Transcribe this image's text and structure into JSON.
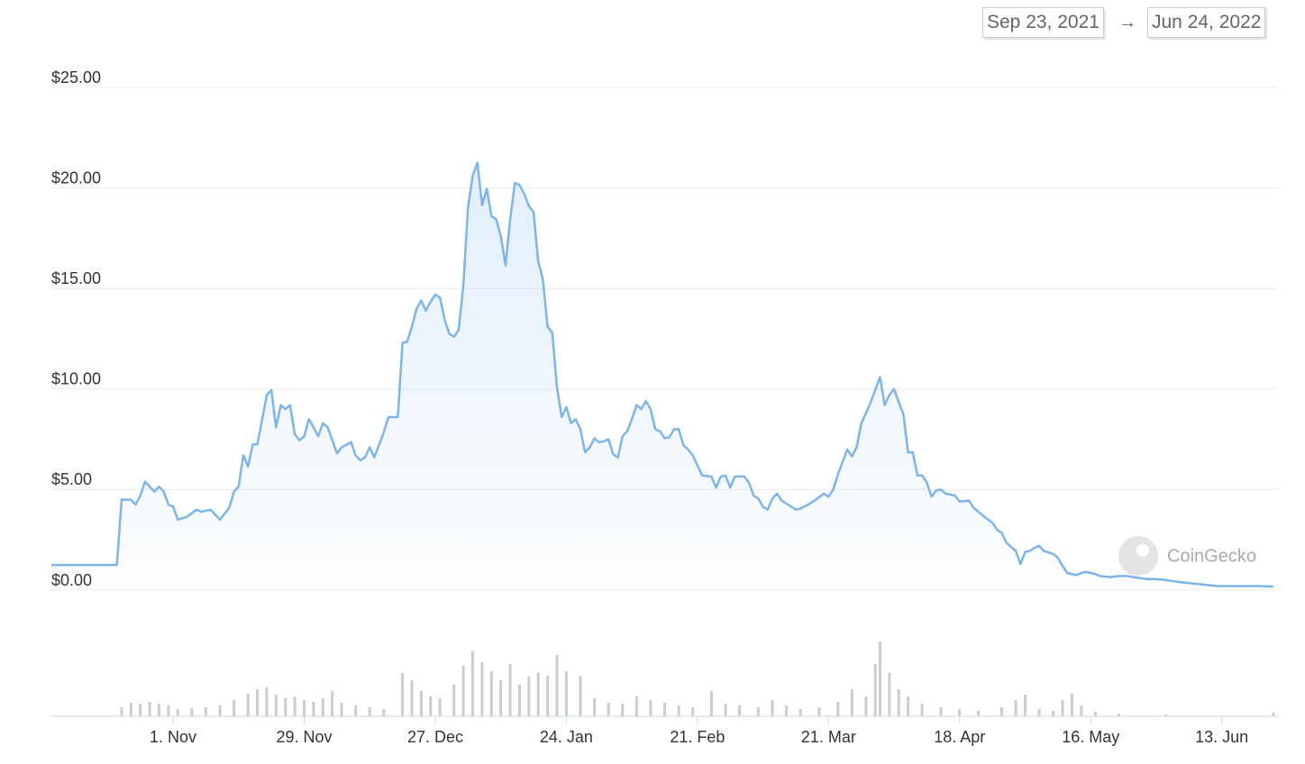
{
  "chart_data": {
    "type": "line",
    "range_start": "Sep 23, 2021",
    "range_arrow": "→",
    "range_end": "Jun 24, 2022",
    "watermark": "CoinGecko",
    "xlim": [
      "2021-10-06",
      "2022-06-25"
    ],
    "xticks": [
      {
        "value": "2021-11-01",
        "label": "1. Nov"
      },
      {
        "value": "2021-11-29",
        "label": "29. Nov"
      },
      {
        "value": "2021-12-27",
        "label": "27. Dec"
      },
      {
        "value": "2022-01-24",
        "label": "24. Jan"
      },
      {
        "value": "2022-02-21",
        "label": "21. Feb"
      },
      {
        "value": "2022-03-21",
        "label": "21. Mar"
      },
      {
        "value": "2022-04-18",
        "label": "18. Apr"
      },
      {
        "value": "2022-05-16",
        "label": "16. May"
      },
      {
        "value": "2022-06-13",
        "label": "13. Jun"
      }
    ],
    "ylim": [
      0,
      25
    ],
    "yticks": [
      {
        "value": 0,
        "label": "$0.00"
      },
      {
        "value": 5,
        "label": "$5.00"
      },
      {
        "value": 10,
        "label": "$10.00"
      },
      {
        "value": 15,
        "label": "$15.00"
      },
      {
        "value": 20,
        "label": "$20.00"
      },
      {
        "value": 25,
        "label": "$25.00"
      }
    ],
    "y2lim": [
      0,
      100
    ],
    "grid": true,
    "x": [
      "2021-10-06",
      "2021-10-20",
      "2021-10-21",
      "2021-10-23",
      "2021-10-24",
      "2021-10-25",
      "2021-10-26",
      "2021-10-28",
      "2021-10-29",
      "2021-10-30",
      "2021-10-31",
      "2021-11-01",
      "2021-11-02",
      "2021-11-04",
      "2021-11-06",
      "2021-11-07",
      "2021-11-09",
      "2021-11-11",
      "2021-11-13",
      "2021-11-14",
      "2021-11-15",
      "2021-11-16",
      "2021-11-17",
      "2021-11-18",
      "2021-11-19",
      "2021-11-21",
      "2021-11-22",
      "2021-11-23",
      "2021-11-24",
      "2021-11-25",
      "2021-11-26",
      "2021-11-27",
      "2021-11-28",
      "2021-11-29",
      "2021-11-30",
      "2021-12-01",
      "2021-12-02",
      "2021-12-03",
      "2021-12-04",
      "2021-12-06",
      "2021-12-07",
      "2021-12-09",
      "2021-12-10",
      "2021-12-11",
      "2021-12-12",
      "2021-12-13",
      "2021-12-14",
      "2021-12-16",
      "2021-12-17",
      "2021-12-19",
      "2021-12-20",
      "2021-12-21",
      "2021-12-22",
      "2021-12-23",
      "2021-12-24",
      "2021-12-25",
      "2021-12-26",
      "2021-12-27",
      "2021-12-28",
      "2021-12-29",
      "2021-12-30",
      "2021-12-31",
      "2022-01-01",
      "2022-01-02",
      "2022-01-03",
      "2022-01-04",
      "2022-01-05",
      "2022-01-06",
      "2022-01-07",
      "2022-01-08",
      "2022-01-09",
      "2022-01-10",
      "2022-01-11",
      "2022-01-12",
      "2022-01-13",
      "2022-01-14",
      "2022-01-15",
      "2022-01-16",
      "2022-01-17",
      "2022-01-18",
      "2022-01-19",
      "2022-01-20",
      "2022-01-21",
      "2022-01-22",
      "2022-01-23",
      "2022-01-24",
      "2022-01-25",
      "2022-01-26",
      "2022-01-27",
      "2022-01-28",
      "2022-01-29",
      "2022-01-30",
      "2022-01-31",
      "2022-02-01",
      "2022-02-02",
      "2022-02-03",
      "2022-02-04",
      "2022-02-05",
      "2022-02-06",
      "2022-02-07",
      "2022-02-08",
      "2022-02-09",
      "2022-02-10",
      "2022-02-11",
      "2022-02-12",
      "2022-02-13",
      "2022-02-14",
      "2022-02-15",
      "2022-02-16",
      "2022-02-17",
      "2022-02-18",
      "2022-02-19",
      "2022-02-20",
      "2022-02-22",
      "2022-02-24",
      "2022-02-25",
      "2022-02-26",
      "2022-02-27",
      "2022-02-28",
      "2022-03-01",
      "2022-03-03",
      "2022-03-04",
      "2022-03-05",
      "2022-03-06",
      "2022-03-07",
      "2022-03-08",
      "2022-03-09",
      "2022-03-10",
      "2022-03-11",
      "2022-03-12",
      "2022-03-14",
      "2022-03-15",
      "2022-03-17",
      "2022-03-18",
      "2022-03-20",
      "2022-03-21",
      "2022-03-22",
      "2022-03-23",
      "2022-03-25",
      "2022-03-26",
      "2022-03-27",
      "2022-03-28",
      "2022-03-29",
      "2022-03-30",
      "2022-04-01",
      "2022-04-02",
      "2022-04-03",
      "2022-04-04",
      "2022-04-05",
      "2022-04-06",
      "2022-04-07",
      "2022-04-08",
      "2022-04-09",
      "2022-04-10",
      "2022-04-11",
      "2022-04-12",
      "2022-04-13",
      "2022-04-14",
      "2022-04-15",
      "2022-04-17",
      "2022-04-18",
      "2022-04-20",
      "2022-04-21",
      "2022-04-23",
      "2022-04-25",
      "2022-04-26",
      "2022-04-27",
      "2022-04-28",
      "2022-04-30",
      "2022-05-01",
      "2022-05-02",
      "2022-05-03",
      "2022-05-04",
      "2022-05-05",
      "2022-05-06",
      "2022-05-08",
      "2022-05-09",
      "2022-05-10",
      "2022-05-11",
      "2022-05-13",
      "2022-05-14",
      "2022-05-15",
      "2022-05-17",
      "2022-05-18",
      "2022-05-20",
      "2022-05-22",
      "2022-05-24",
      "2022-05-25",
      "2022-05-28",
      "2022-05-30",
      "2022-06-01",
      "2022-06-04",
      "2022-06-08",
      "2022-06-12",
      "2022-06-16",
      "2022-06-20",
      "2022-06-24"
    ],
    "series": [
      {
        "color": "#7cb5ec",
        "values": [
          1.25,
          1.25,
          4.5,
          4.5,
          4.25,
          4.7,
          5.4,
          4.9,
          5.15,
          4.9,
          4.25,
          4.15,
          3.5,
          3.65,
          4.0,
          3.9,
          4.0,
          3.5,
          4.1,
          4.9,
          5.15,
          6.7,
          6.15,
          7.25,
          7.25,
          9.7,
          9.95,
          8.1,
          9.2,
          9.0,
          9.2,
          7.75,
          7.45,
          7.65,
          8.5,
          8.1,
          7.65,
          8.3,
          8.1,
          6.8,
          7.1,
          7.35,
          6.7,
          6.45,
          6.6,
          7.1,
          6.6,
          7.85,
          8.6,
          8.6,
          12.3,
          12.35,
          13.1,
          14.0,
          14.4,
          13.9,
          14.35,
          14.7,
          14.55,
          13.45,
          12.75,
          12.6,
          12.95,
          15.15,
          19.05,
          20.6,
          21.25,
          19.15,
          19.95,
          18.6,
          18.45,
          17.6,
          16.15,
          18.45,
          20.25,
          20.15,
          19.7,
          19.1,
          18.8,
          16.35,
          15.45,
          13.1,
          12.8,
          10.1,
          8.6,
          9.1,
          8.3,
          8.5,
          8.0,
          6.85,
          7.1,
          7.55,
          7.35,
          7.4,
          7.5,
          6.75,
          6.6,
          7.65,
          7.9,
          8.5,
          9.2,
          9.0,
          9.4,
          9.0,
          8.0,
          7.9,
          7.55,
          7.6,
          8.0,
          8.0,
          7.2,
          7.0,
          6.7,
          5.7,
          5.65,
          5.1,
          5.65,
          5.7,
          5.1,
          5.65,
          5.65,
          5.35,
          4.7,
          4.55,
          4.15,
          4.0,
          4.55,
          4.8,
          4.45,
          4.3,
          4.0,
          4.05,
          4.3,
          4.45,
          4.8,
          4.65,
          5.0,
          5.75,
          7.0,
          6.65,
          7.1,
          8.3,
          8.8,
          9.35,
          10.6,
          9.2,
          9.7,
          10.0,
          9.35,
          8.75,
          6.85,
          6.85,
          5.7,
          5.7,
          5.35,
          4.65,
          4.95,
          5.0,
          4.8,
          4.7,
          4.4,
          4.45,
          4.1,
          3.7,
          3.35,
          3.0,
          2.85,
          2.35,
          1.95,
          1.3,
          1.9,
          1.95,
          2.1,
          2.2,
          1.95,
          1.8,
          1.6,
          1.2,
          0.85,
          0.75,
          0.85,
          0.9,
          0.8,
          0.7,
          0.65,
          0.7,
          0.7,
          0.65,
          0.55,
          0.55,
          0.5,
          0.4,
          0.3,
          0.2,
          0.2,
          0.2,
          0.18
        ]
      },
      {
        "color": "#cccccc",
        "axis": "y2",
        "x": [
          "2021-10-21",
          "2021-10-23",
          "2021-10-25",
          "2021-10-27",
          "2021-10-29",
          "2021-10-31",
          "2021-11-02",
          "2021-11-05",
          "2021-11-08",
          "2021-11-11",
          "2021-11-14",
          "2021-11-17",
          "2021-11-19",
          "2021-11-21",
          "2021-11-23",
          "2021-11-25",
          "2021-11-27",
          "2021-11-29",
          "2021-12-01",
          "2021-12-03",
          "2021-12-05",
          "2021-12-07",
          "2021-12-10",
          "2021-12-13",
          "2021-12-16",
          "2021-12-20",
          "2021-12-22",
          "2021-12-24",
          "2021-12-26",
          "2021-12-28",
          "2021-12-31",
          "2022-01-02",
          "2022-01-04",
          "2022-01-06",
          "2022-01-08",
          "2022-01-10",
          "2022-01-12",
          "2022-01-14",
          "2022-01-16",
          "2022-01-18",
          "2022-01-20",
          "2022-01-22",
          "2022-01-24",
          "2022-01-27",
          "2022-01-30",
          "2022-02-02",
          "2022-02-05",
          "2022-02-08",
          "2022-02-11",
          "2022-02-14",
          "2022-02-17",
          "2022-02-20",
          "2022-02-24",
          "2022-02-27",
          "2022-03-02",
          "2022-03-06",
          "2022-03-09",
          "2022-03-12",
          "2022-03-15",
          "2022-03-19",
          "2022-03-23",
          "2022-03-26",
          "2022-03-29",
          "2022-03-31",
          "2022-04-01",
          "2022-04-03",
          "2022-04-05",
          "2022-04-07",
          "2022-04-10",
          "2022-04-14",
          "2022-04-18",
          "2022-04-22",
          "2022-04-27",
          "2022-04-30",
          "2022-05-02",
          "2022-05-05",
          "2022-05-08",
          "2022-05-10",
          "2022-05-12",
          "2022-05-14",
          "2022-05-17",
          "2022-05-22",
          "2022-06-01",
          "2022-06-24"
        ],
        "values": [
          10,
          15,
          14,
          16,
          14,
          12,
          8,
          9,
          10,
          12,
          18,
          25,
          30,
          32,
          24,
          20,
          22,
          18,
          16,
          20,
          28,
          15,
          12,
          10,
          8,
          48,
          40,
          28,
          22,
          20,
          35,
          56,
          72,
          60,
          50,
          40,
          58,
          35,
          44,
          48,
          45,
          68,
          50,
          45,
          20,
          15,
          14,
          22,
          18,
          15,
          12,
          10,
          28,
          14,
          12,
          10,
          18,
          12,
          8,
          10,
          16,
          30,
          22,
          58,
          83,
          48,
          30,
          22,
          14,
          10,
          8,
          6,
          10,
          18,
          24,
          8,
          6,
          18,
          25,
          12,
          5,
          3,
          2,
          4
        ]
      }
    ]
  }
}
